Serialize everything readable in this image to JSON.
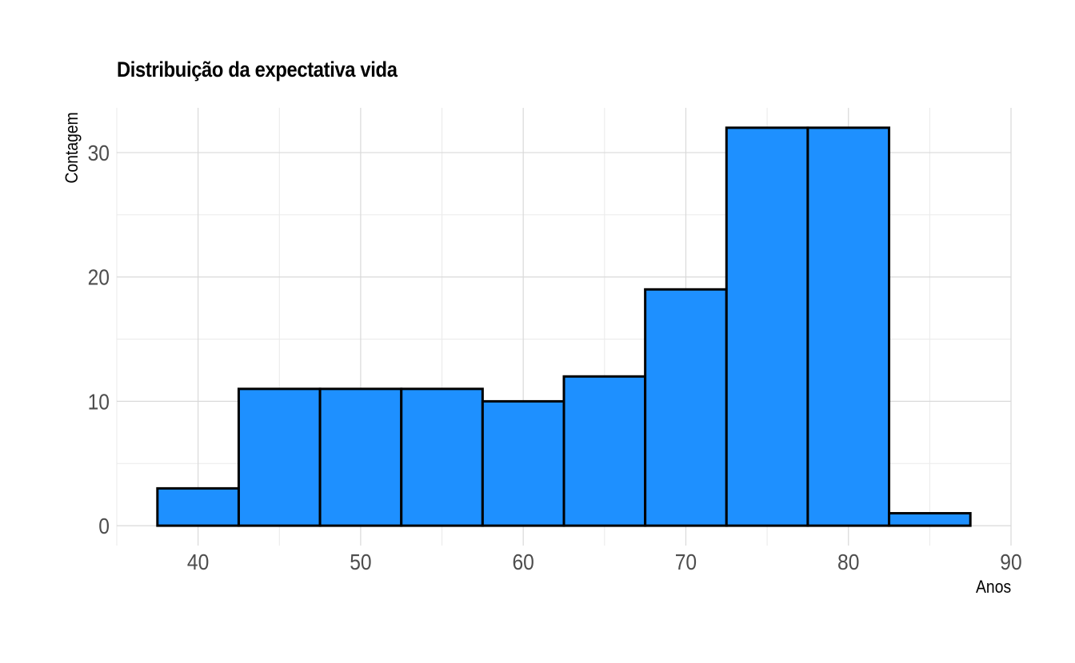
{
  "chart_data": {
    "type": "bar",
    "title": "Distribuição da expectativa vida",
    "xlabel": "Anos",
    "ylabel": "Contagem",
    "bin_width": 5,
    "bins": [
      {
        "x_start": 37.5,
        "x_end": 42.5,
        "count": 3
      },
      {
        "x_start": 42.5,
        "x_end": 47.5,
        "count": 11
      },
      {
        "x_start": 47.5,
        "x_end": 52.5,
        "count": 11
      },
      {
        "x_start": 52.5,
        "x_end": 57.5,
        "count": 11
      },
      {
        "x_start": 57.5,
        "x_end": 62.5,
        "count": 10
      },
      {
        "x_start": 62.5,
        "x_end": 67.5,
        "count": 12
      },
      {
        "x_start": 67.5,
        "x_end": 72.5,
        "count": 19
      },
      {
        "x_start": 72.5,
        "x_end": 77.5,
        "count": 32
      },
      {
        "x_start": 77.5,
        "x_end": 82.5,
        "count": 32
      },
      {
        "x_start": 82.5,
        "x_end": 87.5,
        "count": 1
      }
    ],
    "xlim": [
      35,
      90
    ],
    "ylim": [
      -1.6,
      33.6
    ],
    "x_ticks": [
      40,
      50,
      60,
      70,
      80,
      90
    ],
    "y_ticks": [
      0,
      10,
      20,
      30
    ],
    "x_tick_labels": [
      "40",
      "50",
      "60",
      "70",
      "80",
      "90"
    ],
    "y_tick_labels": [
      "0",
      "10",
      "20",
      "30"
    ],
    "bar_fill": "#1E90FF",
    "bar_stroke": "#000000",
    "grid": true,
    "legend": "none"
  }
}
